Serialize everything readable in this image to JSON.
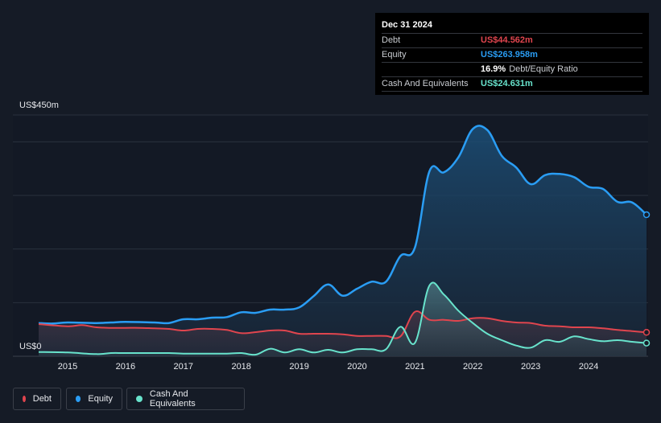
{
  "tooltip": {
    "date": "Dec 31 2024",
    "debt_label": "Debt",
    "debt_value": "US$44.562m",
    "equity_label": "Equity",
    "equity_value": "US$263.958m",
    "ratio_value": "16.9%",
    "ratio_label": "Debt/Equity Ratio",
    "cash_label": "Cash And Equivalents",
    "cash_value": "US$24.631m"
  },
  "legend": {
    "debt": "Debt",
    "equity": "Equity",
    "cash": "Cash And Equivalents"
  },
  "colors": {
    "debt": "#e0454e",
    "equity": "#2a9df4",
    "cash": "#68e3cc",
    "background": "#151b26"
  },
  "chart_data": {
    "type": "area",
    "y_axis_top_label": "US$450m",
    "y_axis_bottom_label": "US$0",
    "ylim": [
      0,
      450
    ],
    "xlim": [
      2014.5,
      2025.0
    ],
    "x_ticks": [
      "2015",
      "2016",
      "2017",
      "2018",
      "2019",
      "2020",
      "2021",
      "2022",
      "2023",
      "2024"
    ],
    "grid": true,
    "legend_position": "bottom-left",
    "series": [
      {
        "name": "Debt",
        "points": [
          [
            2014.5,
            60
          ],
          [
            2015.0,
            56
          ],
          [
            2015.25,
            58
          ],
          [
            2015.5,
            54
          ],
          [
            2015.75,
            53
          ],
          [
            2016.0,
            53
          ],
          [
            2016.25,
            53
          ],
          [
            2016.5,
            52
          ],
          [
            2016.75,
            51
          ],
          [
            2017.0,
            48
          ],
          [
            2017.25,
            51
          ],
          [
            2017.5,
            51
          ],
          [
            2017.75,
            49
          ],
          [
            2018.0,
            43
          ],
          [
            2018.25,
            45
          ],
          [
            2018.5,
            48
          ],
          [
            2018.75,
            48
          ],
          [
            2019.0,
            42
          ],
          [
            2019.25,
            42
          ],
          [
            2019.5,
            42
          ],
          [
            2019.75,
            41
          ],
          [
            2020.0,
            38
          ],
          [
            2020.25,
            38
          ],
          [
            2020.5,
            38
          ],
          [
            2020.75,
            37
          ],
          [
            2021.0,
            83
          ],
          [
            2021.25,
            68
          ],
          [
            2021.5,
            68
          ],
          [
            2021.75,
            66
          ],
          [
            2022.0,
            71
          ],
          [
            2022.25,
            71
          ],
          [
            2022.5,
            66
          ],
          [
            2022.75,
            63
          ],
          [
            2023.0,
            62
          ],
          [
            2023.25,
            57
          ],
          [
            2023.5,
            56
          ],
          [
            2023.75,
            54
          ],
          [
            2024.0,
            54
          ],
          [
            2024.25,
            52
          ],
          [
            2024.5,
            49
          ],
          [
            2024.75,
            47
          ],
          [
            2025.0,
            44.562
          ]
        ]
      },
      {
        "name": "Equity",
        "points": [
          [
            2014.5,
            62
          ],
          [
            2014.75,
            61
          ],
          [
            2015.0,
            63
          ],
          [
            2015.5,
            62
          ],
          [
            2015.75,
            63
          ],
          [
            2016.0,
            64
          ],
          [
            2016.5,
            63
          ],
          [
            2016.75,
            62
          ],
          [
            2017.0,
            69
          ],
          [
            2017.25,
            69
          ],
          [
            2017.5,
            72
          ],
          [
            2017.75,
            73
          ],
          [
            2018.0,
            82
          ],
          [
            2018.25,
            81
          ],
          [
            2018.5,
            87
          ],
          [
            2018.75,
            87
          ],
          [
            2019.0,
            91
          ],
          [
            2019.25,
            112
          ],
          [
            2019.5,
            134
          ],
          [
            2019.75,
            113
          ],
          [
            2020.0,
            126
          ],
          [
            2020.25,
            139
          ],
          [
            2020.5,
            139
          ],
          [
            2020.75,
            187
          ],
          [
            2021.0,
            203
          ],
          [
            2021.25,
            345
          ],
          [
            2021.5,
            343
          ],
          [
            2021.75,
            371
          ],
          [
            2022.0,
            424
          ],
          [
            2022.25,
            422
          ],
          [
            2022.5,
            374
          ],
          [
            2022.75,
            352
          ],
          [
            2023.0,
            321
          ],
          [
            2023.25,
            338
          ],
          [
            2023.5,
            340
          ],
          [
            2023.75,
            334
          ],
          [
            2024.0,
            316
          ],
          [
            2024.25,
            312
          ],
          [
            2024.5,
            288
          ],
          [
            2024.75,
            287
          ],
          [
            2025.0,
            263.958
          ]
        ]
      },
      {
        "name": "Cash And Equivalents",
        "points": [
          [
            2014.5,
            8
          ],
          [
            2015.0,
            7
          ],
          [
            2015.5,
            4
          ],
          [
            2015.75,
            6
          ],
          [
            2016.0,
            6
          ],
          [
            2016.5,
            6
          ],
          [
            2016.75,
            6
          ],
          [
            2017.0,
            5
          ],
          [
            2017.5,
            5
          ],
          [
            2017.75,
            5
          ],
          [
            2018.0,
            6
          ],
          [
            2018.25,
            3
          ],
          [
            2018.5,
            14
          ],
          [
            2018.75,
            7
          ],
          [
            2019.0,
            13
          ],
          [
            2019.25,
            7
          ],
          [
            2019.5,
            12
          ],
          [
            2019.75,
            7
          ],
          [
            2020.0,
            13
          ],
          [
            2020.25,
            13
          ],
          [
            2020.5,
            13
          ],
          [
            2020.75,
            55
          ],
          [
            2021.0,
            25
          ],
          [
            2021.25,
            132
          ],
          [
            2021.5,
            115
          ],
          [
            2021.75,
            85
          ],
          [
            2022.0,
            62
          ],
          [
            2022.25,
            42
          ],
          [
            2022.5,
            30
          ],
          [
            2022.75,
            20
          ],
          [
            2023.0,
            16
          ],
          [
            2023.25,
            30
          ],
          [
            2023.5,
            27
          ],
          [
            2023.75,
            37
          ],
          [
            2024.0,
            32
          ],
          [
            2024.25,
            28
          ],
          [
            2024.5,
            30
          ],
          [
            2024.75,
            27
          ],
          [
            2025.0,
            24.631
          ]
        ]
      }
    ]
  }
}
